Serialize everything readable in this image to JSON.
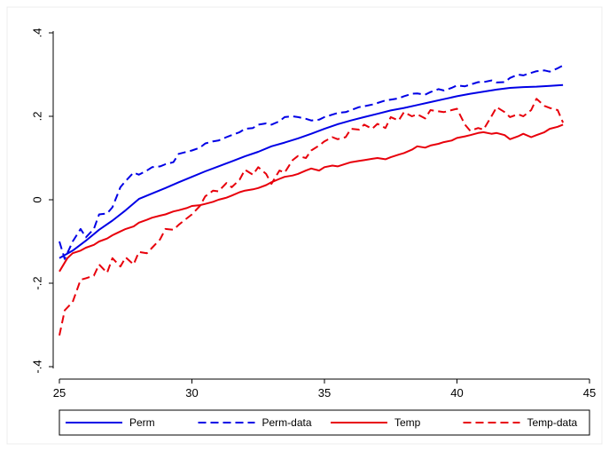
{
  "chart_data": {
    "type": "line",
    "title": "",
    "xlabel": "",
    "ylabel": "",
    "xlim": [
      25,
      45
    ],
    "ylim": [
      -0.4,
      0.4
    ],
    "x_ticks": [
      25,
      30,
      35,
      40,
      45
    ],
    "x_tick_labels": [
      "25",
      "30",
      "35",
      "40",
      "45"
    ],
    "y_ticks": [
      -0.4,
      -0.2,
      0,
      0.2,
      0.4
    ],
    "y_tick_labels": [
      "-.4",
      "-.2",
      "0",
      ".2",
      ".4"
    ],
    "grid": false,
    "legend_position": "bottom",
    "series": [
      {
        "name": "Perm",
        "color": "#0000e6",
        "dash": "solid",
        "points": [
          [
            25.0,
            -0.14
          ],
          [
            25.5,
            -0.122
          ],
          [
            26.0,
            -0.098
          ],
          [
            26.5,
            -0.072
          ],
          [
            27.0,
            -0.05
          ],
          [
            27.5,
            -0.025
          ],
          [
            28.0,
            0.002
          ],
          [
            28.5,
            0.015
          ],
          [
            29.0,
            0.028
          ],
          [
            29.5,
            0.042
          ],
          [
            30.0,
            0.055
          ],
          [
            30.5,
            0.068
          ],
          [
            31.0,
            0.08
          ],
          [
            31.5,
            0.092
          ],
          [
            32.0,
            0.104
          ],
          [
            32.5,
            0.115
          ],
          [
            33.0,
            0.128
          ],
          [
            33.5,
            0.137
          ],
          [
            34.0,
            0.147
          ],
          [
            34.5,
            0.158
          ],
          [
            35.0,
            0.17
          ],
          [
            35.5,
            0.181
          ],
          [
            36.0,
            0.19
          ],
          [
            36.5,
            0.198
          ],
          [
            37.0,
            0.206
          ],
          [
            37.5,
            0.214
          ],
          [
            38.0,
            0.22
          ],
          [
            38.5,
            0.227
          ],
          [
            39.0,
            0.234
          ],
          [
            39.5,
            0.241
          ],
          [
            40.0,
            0.248
          ],
          [
            40.5,
            0.254
          ],
          [
            41.0,
            0.259
          ],
          [
            41.5,
            0.264
          ],
          [
            42.0,
            0.268
          ],
          [
            42.5,
            0.27
          ],
          [
            43.0,
            0.271
          ],
          [
            43.5,
            0.273
          ],
          [
            44.0,
            0.275
          ]
        ]
      },
      {
        "name": "Perm-data",
        "color": "#0000e6",
        "dash": "dashed",
        "points": [
          [
            25.0,
            -0.1
          ],
          [
            25.2,
            -0.142
          ],
          [
            25.5,
            -0.1
          ],
          [
            25.8,
            -0.07
          ],
          [
            26.0,
            -0.09
          ],
          [
            26.3,
            -0.07
          ],
          [
            26.5,
            -0.035
          ],
          [
            26.8,
            -0.033
          ],
          [
            27.0,
            -0.018
          ],
          [
            27.3,
            0.03
          ],
          [
            27.5,
            0.045
          ],
          [
            27.8,
            0.065
          ],
          [
            28.0,
            0.06
          ],
          [
            28.3,
            0.07
          ],
          [
            28.5,
            0.078
          ],
          [
            28.8,
            0.08
          ],
          [
            29.0,
            0.085
          ],
          [
            29.3,
            0.09
          ],
          [
            29.5,
            0.11
          ],
          [
            29.8,
            0.115
          ],
          [
            30.0,
            0.118
          ],
          [
            30.3,
            0.125
          ],
          [
            30.5,
            0.135
          ],
          [
            30.8,
            0.14
          ],
          [
            31.0,
            0.142
          ],
          [
            31.3,
            0.15
          ],
          [
            31.5,
            0.155
          ],
          [
            31.8,
            0.162
          ],
          [
            32.0,
            0.17
          ],
          [
            32.3,
            0.172
          ],
          [
            32.5,
            0.18
          ],
          [
            32.8,
            0.183
          ],
          [
            33.0,
            0.18
          ],
          [
            33.3,
            0.188
          ],
          [
            33.5,
            0.198
          ],
          [
            33.8,
            0.2
          ],
          [
            34.0,
            0.198
          ],
          [
            34.3,
            0.194
          ],
          [
            34.5,
            0.19
          ],
          [
            34.8,
            0.192
          ],
          [
            35.0,
            0.198
          ],
          [
            35.3,
            0.204
          ],
          [
            35.5,
            0.208
          ],
          [
            35.8,
            0.21
          ],
          [
            36.0,
            0.215
          ],
          [
            36.3,
            0.222
          ],
          [
            36.5,
            0.224
          ],
          [
            36.8,
            0.228
          ],
          [
            37.0,
            0.232
          ],
          [
            37.3,
            0.238
          ],
          [
            37.5,
            0.24
          ],
          [
            37.8,
            0.243
          ],
          [
            38.0,
            0.248
          ],
          [
            38.3,
            0.254
          ],
          [
            38.5,
            0.255
          ],
          [
            38.8,
            0.252
          ],
          [
            39.0,
            0.258
          ],
          [
            39.3,
            0.265
          ],
          [
            39.5,
            0.262
          ],
          [
            39.8,
            0.268
          ],
          [
            40.0,
            0.274
          ],
          [
            40.3,
            0.272
          ],
          [
            40.5,
            0.276
          ],
          [
            40.8,
            0.282
          ],
          [
            41.0,
            0.282
          ],
          [
            41.3,
            0.286
          ],
          [
            41.5,
            0.281
          ],
          [
            41.8,
            0.282
          ],
          [
            42.0,
            0.292
          ],
          [
            42.3,
            0.3
          ],
          [
            42.5,
            0.298
          ],
          [
            42.8,
            0.304
          ],
          [
            43.0,
            0.308
          ],
          [
            43.3,
            0.31
          ],
          [
            43.5,
            0.307
          ],
          [
            43.8,
            0.315
          ],
          [
            44.0,
            0.322
          ]
        ]
      },
      {
        "name": "Temp",
        "color": "#e8000b",
        "dash": "solid",
        "points": [
          [
            25.0,
            -0.172
          ],
          [
            25.3,
            -0.14
          ],
          [
            25.5,
            -0.128
          ],
          [
            25.8,
            -0.122
          ],
          [
            26.0,
            -0.115
          ],
          [
            26.3,
            -0.108
          ],
          [
            26.5,
            -0.1
          ],
          [
            26.8,
            -0.093
          ],
          [
            27.0,
            -0.085
          ],
          [
            27.3,
            -0.076
          ],
          [
            27.5,
            -0.07
          ],
          [
            27.8,
            -0.064
          ],
          [
            28.0,
            -0.055
          ],
          [
            28.3,
            -0.048
          ],
          [
            28.5,
            -0.043
          ],
          [
            28.8,
            -0.038
          ],
          [
            29.0,
            -0.035
          ],
          [
            29.3,
            -0.028
          ],
          [
            29.5,
            -0.025
          ],
          [
            29.8,
            -0.02
          ],
          [
            30.0,
            -0.015
          ],
          [
            30.3,
            -0.013
          ],
          [
            30.5,
            -0.01
          ],
          [
            30.8,
            -0.005
          ],
          [
            31.0,
            0.0
          ],
          [
            31.3,
            0.005
          ],
          [
            31.5,
            0.01
          ],
          [
            31.8,
            0.018
          ],
          [
            32.0,
            0.022
          ],
          [
            32.3,
            0.025
          ],
          [
            32.5,
            0.028
          ],
          [
            32.8,
            0.035
          ],
          [
            33.0,
            0.042
          ],
          [
            33.3,
            0.05
          ],
          [
            33.5,
            0.055
          ],
          [
            33.8,
            0.058
          ],
          [
            34.0,
            0.062
          ],
          [
            34.3,
            0.07
          ],
          [
            34.5,
            0.075
          ],
          [
            34.8,
            0.07
          ],
          [
            35.0,
            0.078
          ],
          [
            35.3,
            0.082
          ],
          [
            35.5,
            0.08
          ],
          [
            35.8,
            0.086
          ],
          [
            36.0,
            0.09
          ],
          [
            36.3,
            0.093
          ],
          [
            36.5,
            0.095
          ],
          [
            36.8,
            0.098
          ],
          [
            37.0,
            0.1
          ],
          [
            37.3,
            0.097
          ],
          [
            37.5,
            0.102
          ],
          [
            37.8,
            0.108
          ],
          [
            38.0,
            0.112
          ],
          [
            38.3,
            0.12
          ],
          [
            38.5,
            0.128
          ],
          [
            38.8,
            0.125
          ],
          [
            39.0,
            0.13
          ],
          [
            39.3,
            0.134
          ],
          [
            39.5,
            0.138
          ],
          [
            39.8,
            0.142
          ],
          [
            40.0,
            0.148
          ],
          [
            40.3,
            0.152
          ],
          [
            40.5,
            0.155
          ],
          [
            40.8,
            0.16
          ],
          [
            41.0,
            0.162
          ],
          [
            41.3,
            0.158
          ],
          [
            41.5,
            0.16
          ],
          [
            41.8,
            0.155
          ],
          [
            42.0,
            0.145
          ],
          [
            42.3,
            0.152
          ],
          [
            42.5,
            0.158
          ],
          [
            42.8,
            0.15
          ],
          [
            43.0,
            0.155
          ],
          [
            43.3,
            0.162
          ],
          [
            43.5,
            0.17
          ],
          [
            43.8,
            0.175
          ],
          [
            44.0,
            0.18
          ]
        ]
      },
      {
        "name": "Temp-data",
        "color": "#e8000b",
        "dash": "dashed",
        "points": [
          [
            25.0,
            -0.325
          ],
          [
            25.2,
            -0.265
          ],
          [
            25.5,
            -0.245
          ],
          [
            25.8,
            -0.192
          ],
          [
            26.0,
            -0.188
          ],
          [
            26.3,
            -0.182
          ],
          [
            26.5,
            -0.155
          ],
          [
            26.8,
            -0.175
          ],
          [
            27.0,
            -0.14
          ],
          [
            27.3,
            -0.16
          ],
          [
            27.5,
            -0.138
          ],
          [
            27.8,
            -0.155
          ],
          [
            28.0,
            -0.125
          ],
          [
            28.3,
            -0.128
          ],
          [
            28.5,
            -0.115
          ],
          [
            28.8,
            -0.095
          ],
          [
            29.0,
            -0.07
          ],
          [
            29.3,
            -0.072
          ],
          [
            29.5,
            -0.06
          ],
          [
            29.8,
            -0.045
          ],
          [
            30.0,
            -0.035
          ],
          [
            30.3,
            -0.015
          ],
          [
            30.5,
            0.008
          ],
          [
            30.8,
            0.022
          ],
          [
            31.0,
            0.02
          ],
          [
            31.3,
            0.04
          ],
          [
            31.5,
            0.03
          ],
          [
            31.8,
            0.048
          ],
          [
            32.0,
            0.072
          ],
          [
            32.3,
            0.06
          ],
          [
            32.5,
            0.078
          ],
          [
            32.8,
            0.062
          ],
          [
            33.0,
            0.038
          ],
          [
            33.3,
            0.07
          ],
          [
            33.5,
            0.065
          ],
          [
            33.8,
            0.095
          ],
          [
            34.0,
            0.105
          ],
          [
            34.3,
            0.1
          ],
          [
            34.5,
            0.118
          ],
          [
            34.8,
            0.13
          ],
          [
            35.0,
            0.14
          ],
          [
            35.3,
            0.15
          ],
          [
            35.5,
            0.145
          ],
          [
            35.8,
            0.15
          ],
          [
            36.0,
            0.17
          ],
          [
            36.3,
            0.168
          ],
          [
            36.5,
            0.18
          ],
          [
            36.8,
            0.17
          ],
          [
            37.0,
            0.182
          ],
          [
            37.3,
            0.172
          ],
          [
            37.5,
            0.198
          ],
          [
            37.8,
            0.19
          ],
          [
            38.0,
            0.21
          ],
          [
            38.3,
            0.2
          ],
          [
            38.5,
            0.205
          ],
          [
            38.8,
            0.195
          ],
          [
            39.0,
            0.215
          ],
          [
            39.3,
            0.212
          ],
          [
            39.5,
            0.21
          ],
          [
            39.8,
            0.215
          ],
          [
            40.0,
            0.218
          ],
          [
            40.3,
            0.18
          ],
          [
            40.5,
            0.165
          ],
          [
            40.8,
            0.172
          ],
          [
            41.0,
            0.168
          ],
          [
            41.3,
            0.2
          ],
          [
            41.5,
            0.222
          ],
          [
            41.8,
            0.21
          ],
          [
            42.0,
            0.198
          ],
          [
            42.3,
            0.205
          ],
          [
            42.5,
            0.2
          ],
          [
            42.8,
            0.215
          ],
          [
            43.0,
            0.242
          ],
          [
            43.3,
            0.225
          ],
          [
            43.5,
            0.22
          ],
          [
            43.8,
            0.215
          ],
          [
            44.0,
            0.185
          ]
        ]
      }
    ]
  }
}
